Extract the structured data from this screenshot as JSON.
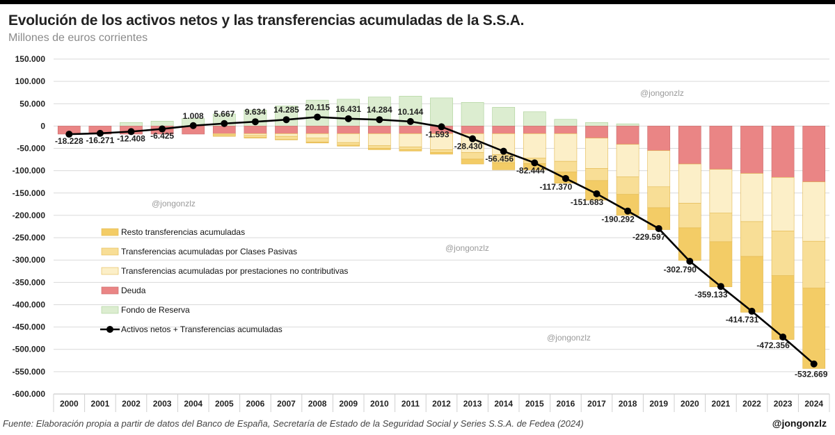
{
  "title": "Evolución de los activos netos y las transferencias acumuladas de la S.S.A.",
  "subtitle": "Millones de euros corrientes",
  "source": "Fuente: Elaboración propia a partir de datos del Banco de España, Secretaría de Estado de la Seguridad Social y Series S.S.A. de Fedea (2024)",
  "handle": "@jongonzlz",
  "watermark": "@jongonzlz",
  "colors": {
    "resto": "#f3cc66",
    "clases_pasivas": "#f8de96",
    "no_contributivas": "#fcefc8",
    "deuda": "#ea8585",
    "fondo_reserva": "#dcedd0",
    "line": "#000000",
    "grid": "#d9d9d9"
  },
  "chart_data": {
    "type": "bar",
    "stacked": true,
    "categories": [
      "2000",
      "2001",
      "2002",
      "2003",
      "2004",
      "2005",
      "2006",
      "2007",
      "2008",
      "2009",
      "2010",
      "2011",
      "2012",
      "2013",
      "2014",
      "2015",
      "2016",
      "2017",
      "2018",
      "2019",
      "2020",
      "2021",
      "2022",
      "2023",
      "2024"
    ],
    "ylim": [
      -600000,
      150000
    ],
    "yticks": [
      150000,
      100000,
      50000,
      0,
      -50000,
      -100000,
      -150000,
      -200000,
      -250000,
      -300000,
      -350000,
      -400000,
      -450000,
      -500000,
      -550000,
      -600000
    ],
    "ytick_labels": [
      "150.000",
      "100.000",
      "50.000",
      "0",
      "-50.000",
      "-100.000",
      "-150.000",
      "-200.000",
      "-250.000",
      "-300.000",
      "-350.000",
      "-400.000",
      "-450.000",
      "-500.000",
      "-550.000",
      "-600.000"
    ],
    "grid": true,
    "legend_position": "left",
    "series": [
      {
        "name": "Fondo de Reserva",
        "key": "fondo_reserva",
        "kind": "bar",
        "values": [
          0,
          0,
          8000,
          11000,
          17000,
          27000,
          36000,
          45000,
          58000,
          60000,
          65000,
          67000,
          63000,
          53000,
          42000,
          32000,
          15000,
          8000,
          5000,
          0,
          0,
          0,
          0,
          0,
          0
        ]
      },
      {
        "name": "Deuda",
        "key": "deuda",
        "kind": "bar",
        "values": [
          -18000,
          -18000,
          -18000,
          -18000,
          -18000,
          -17000,
          -17000,
          -17000,
          -17000,
          -17000,
          -17000,
          -17000,
          -17000,
          -17000,
          -17000,
          -17000,
          -17000,
          -27000,
          -41000,
          -55000,
          -85000,
          -97000,
          -106000,
          -115000,
          -125000
        ]
      },
      {
        "name": "Transferencias acumuladas por prestaciones no contributivas",
        "key": "no_contributivas",
        "kind": "bar",
        "values": [
          0,
          0,
          0,
          0,
          0,
          -2000,
          -4000,
          -6000,
          -10000,
          -20000,
          -27000,
          -30000,
          -36000,
          -42000,
          -47000,
          -55000,
          -62000,
          -68000,
          -73000,
          -81000,
          -88000,
          -98000,
          -108000,
          -120000,
          -133000
        ]
      },
      {
        "name": "Transferencias acumuladas por Clases Pasivas",
        "key": "clases_pasivas",
        "kind": "bar",
        "values": [
          0,
          0,
          0,
          0,
          0,
          -3000,
          -5000,
          -7000,
          -9000,
          -6000,
          -6000,
          -6000,
          -6000,
          -15000,
          -18000,
          -12000,
          -24000,
          -27000,
          -39000,
          -47000,
          -55000,
          -64000,
          -78000,
          -100000,
          -105000
        ]
      },
      {
        "name": "Resto transferencias acumuladas",
        "key": "resto",
        "kind": "bar",
        "values": [
          0,
          0,
          0,
          0,
          0,
          -1000,
          -1000,
          -1000,
          -2000,
          -2000,
          -3000,
          -3000,
          -4000,
          -11000,
          -16000,
          -14000,
          -25000,
          -44000,
          -47000,
          -49000,
          -73000,
          -101000,
          -125000,
          -143000,
          -180000
        ]
      },
      {
        "name": "Activos netos + Transferencias acumuladas",
        "key": "line",
        "kind": "line",
        "values": [
          -18228,
          -16271,
          -12408,
          -6425,
          1008,
          5667,
          9634,
          14285,
          20115,
          16431,
          14284,
          10144,
          -1593,
          -28430,
          -56456,
          -82444,
          -117370,
          -151683,
          -190292,
          -229597,
          -302790,
          -359133,
          -414731,
          -472356,
          -532669
        ],
        "labels": [
          "-18.228",
          "-16.271",
          "-12.408",
          "-6.425",
          "1.008",
          "5.667",
          "9.634",
          "14.285",
          "20.115",
          "16.431",
          "14.284",
          "10.144",
          "-1.593",
          "-28.430",
          "-56.456",
          "-82.444",
          "-117.370",
          "-151.683",
          "-190.292",
          "-229.597",
          "-302.790",
          "-359.133",
          "-414.731",
          "-472.356",
          "-532.669"
        ]
      }
    ],
    "legend_order": [
      "resto",
      "clases_pasivas",
      "no_contributivas",
      "deuda",
      "fondo_reserva",
      "line"
    ]
  }
}
